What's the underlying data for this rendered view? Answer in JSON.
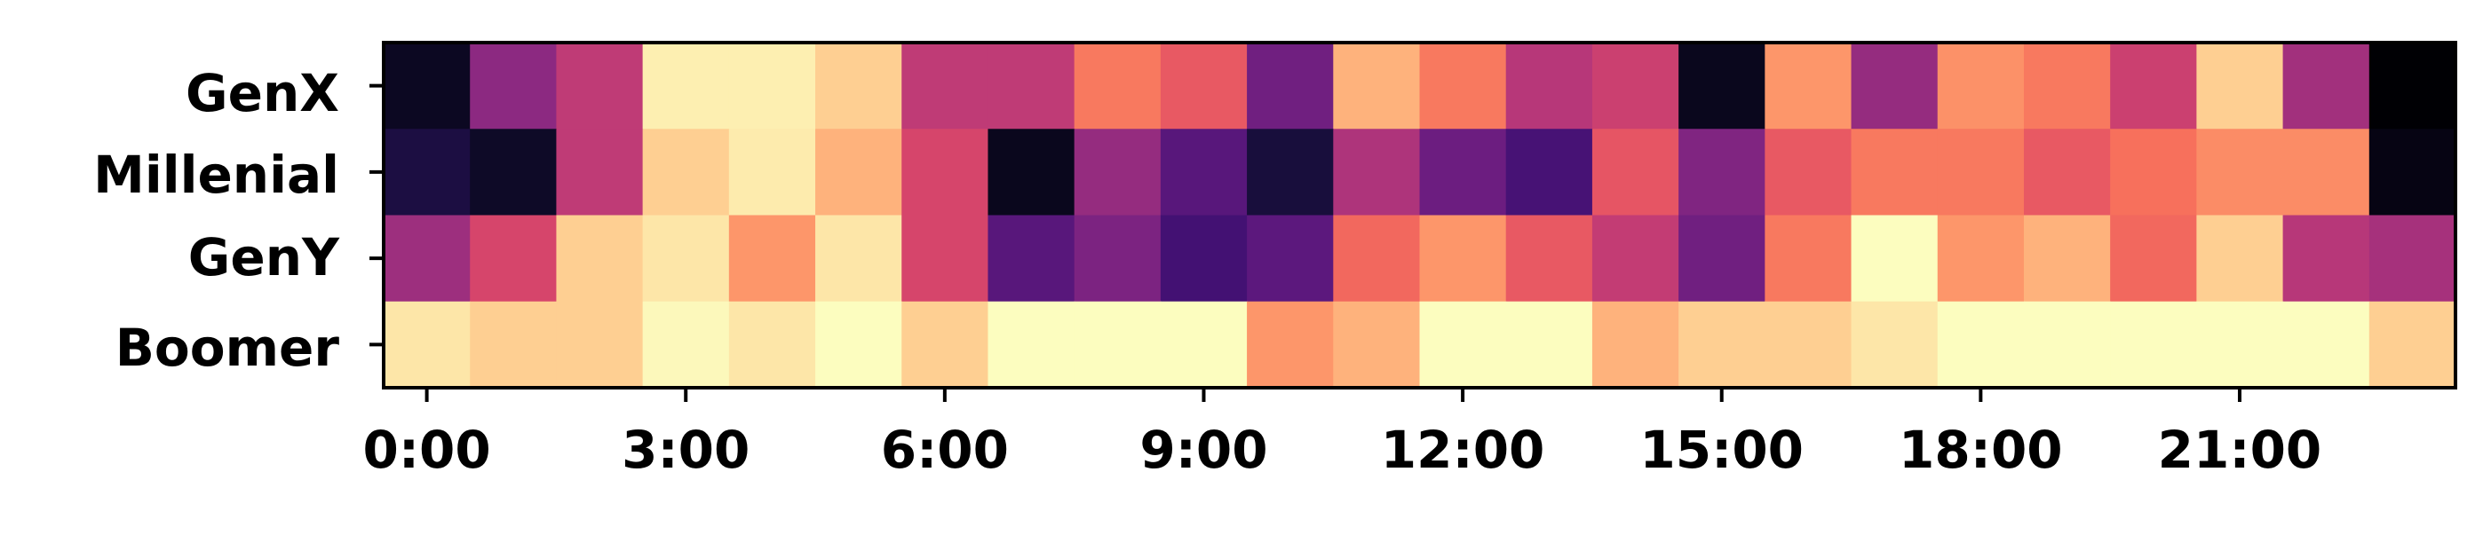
{
  "chart_data": {
    "type": "heatmap",
    "colormap": "magma",
    "rows": [
      "GenX",
      "Millenial",
      "GenY",
      "Boomer"
    ],
    "hours": [
      "0:00",
      "1:00",
      "2:00",
      "3:00",
      "4:00",
      "5:00",
      "6:00",
      "7:00",
      "8:00",
      "9:00",
      "10:00",
      "11:00",
      "12:00",
      "13:00",
      "14:00",
      "15:00",
      "16:00",
      "17:00",
      "18:00",
      "19:00",
      "20:00",
      "21:00",
      "22:00",
      "23:00"
    ],
    "x_tick_labels": [
      "0:00",
      "3:00",
      "6:00",
      "9:00",
      "12:00",
      "15:00",
      "18:00",
      "21:00"
    ],
    "x_tick_hours": [
      0,
      3,
      6,
      9,
      12,
      15,
      18,
      21
    ],
    "values": [
      [
        0.06,
        0.4,
        0.52,
        0.97,
        0.97,
        0.9,
        0.52,
        0.52,
        0.72,
        0.64,
        0.33,
        0.84,
        0.72,
        0.5,
        0.55,
        0.05,
        0.78,
        0.42,
        0.77,
        0.72,
        0.55,
        0.9,
        0.45,
        0.0
      ],
      [
        0.12,
        0.07,
        0.52,
        0.9,
        0.96,
        0.84,
        0.58,
        0.05,
        0.42,
        0.27,
        0.11,
        0.48,
        0.32,
        0.23,
        0.63,
        0.37,
        0.64,
        0.72,
        0.72,
        0.64,
        0.7,
        0.76,
        0.76,
        0.03
      ],
      [
        0.44,
        0.58,
        0.9,
        0.95,
        0.78,
        0.95,
        0.58,
        0.27,
        0.36,
        0.22,
        0.28,
        0.68,
        0.78,
        0.64,
        0.53,
        0.33,
        0.72,
        1.0,
        0.78,
        0.84,
        0.68,
        0.9,
        0.5,
        0.46
      ],
      [
        0.95,
        0.9,
        0.9,
        0.99,
        0.95,
        1.0,
        0.9,
        1.0,
        1.0,
        1.0,
        0.78,
        0.84,
        1.0,
        1.0,
        0.84,
        0.9,
        0.9,
        0.95,
        1.0,
        1.0,
        1.0,
        1.0,
        1.0,
        0.9
      ]
    ],
    "grid": false
  }
}
